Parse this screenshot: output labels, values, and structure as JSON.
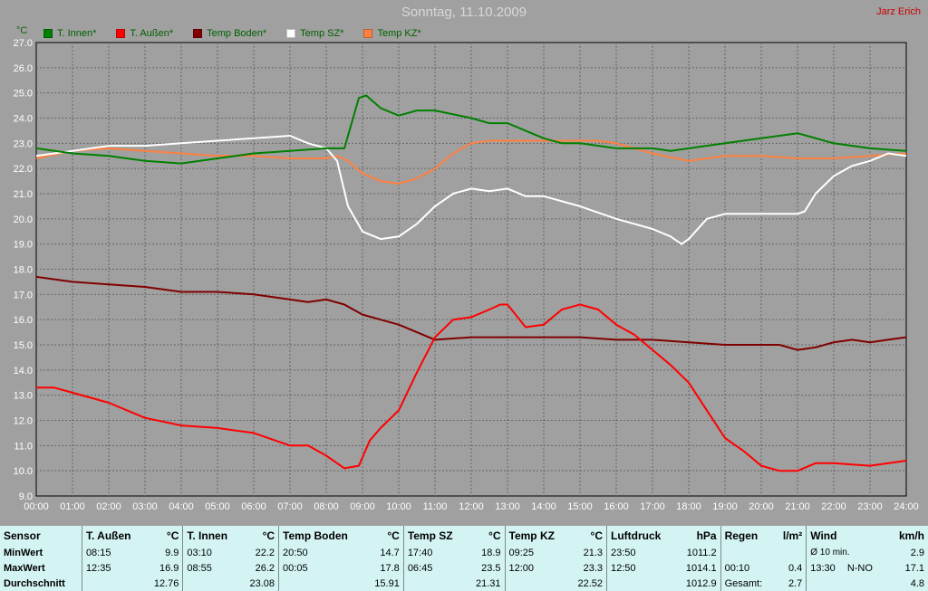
{
  "title": "Sonntag, 11.10.2009",
  "author": "Jarz Erich",
  "unit_label": "°C",
  "chart_data": {
    "type": "line",
    "title": "Sonntag, 11.10.2009",
    "ylabel": "°C",
    "ylim": [
      9.0,
      27.0
    ],
    "yticks": [
      "9.0",
      "10.0",
      "11.0",
      "12.0",
      "13.0",
      "14.0",
      "15.0",
      "16.0",
      "17.0",
      "18.0",
      "19.0",
      "20.0",
      "21.0",
      "22.0",
      "23.0",
      "24.0",
      "25.0",
      "26.0",
      "27.0"
    ],
    "xlim": [
      0,
      24
    ],
    "xticks": [
      "00:00",
      "01:00",
      "02:00",
      "03:00",
      "04:00",
      "05:00",
      "06:00",
      "07:00",
      "08:00",
      "09:00",
      "10:00",
      "11:00",
      "12:00",
      "13:00",
      "14:00",
      "15:00",
      "16:00",
      "17:00",
      "18:00",
      "19:00",
      "20:00",
      "21:00",
      "22:00",
      "23:00",
      "24:00"
    ],
    "grid": true,
    "legend_position": "top-left",
    "series": [
      {
        "name": "T. Innen*",
        "color": "#008000",
        "x": [
          0,
          1,
          2,
          3,
          4,
          5,
          6,
          7,
          8,
          8.5,
          8.9,
          9.1,
          9.5,
          10,
          10.5,
          11,
          12,
          12.5,
          13,
          13.5,
          14,
          14.5,
          15,
          16,
          17,
          17.5,
          18,
          19,
          20,
          20.5,
          21,
          22,
          23,
          24
        ],
        "y": [
          22.8,
          22.6,
          22.5,
          22.3,
          22.2,
          22.4,
          22.6,
          22.7,
          22.8,
          22.8,
          24.8,
          24.9,
          24.4,
          24.1,
          24.3,
          24.3,
          24.0,
          23.8,
          23.8,
          23.5,
          23.2,
          23.0,
          23.0,
          22.8,
          22.8,
          22.7,
          22.8,
          23.0,
          23.2,
          23.3,
          23.4,
          23.0,
          22.8,
          22.7
        ]
      },
      {
        "name": "T. Außen*",
        "color": "#ff0000",
        "x": [
          0,
          0.5,
          1,
          2,
          3,
          4,
          5,
          6,
          7,
          7.5,
          8,
          8.5,
          8.9,
          9.2,
          9.5,
          10,
          10.5,
          11,
          11.5,
          12,
          12.5,
          12.8,
          13,
          13.5,
          14,
          14.5,
          15,
          15.5,
          16,
          16.5,
          17,
          17.5,
          18,
          18.5,
          19,
          19.5,
          20,
          20.5,
          21,
          21.5,
          22,
          23,
          24
        ],
        "y": [
          13.3,
          13.3,
          13.1,
          12.7,
          12.1,
          11.8,
          11.7,
          11.5,
          11.0,
          11.0,
          10.6,
          10.1,
          10.2,
          11.2,
          11.7,
          12.4,
          13.9,
          15.3,
          16.0,
          16.1,
          16.4,
          16.6,
          16.6,
          15.7,
          15.8,
          16.4,
          16.6,
          16.4,
          15.8,
          15.4,
          14.8,
          14.2,
          13.5,
          12.4,
          11.3,
          10.8,
          10.2,
          10.0,
          10.0,
          10.3,
          10.3,
          10.2,
          10.4
        ]
      },
      {
        "name": "Temp Boden*",
        "color": "#800000",
        "x": [
          0,
          1,
          2,
          3,
          4,
          5,
          6,
          7,
          7.5,
          8,
          8.5,
          9,
          9.5,
          10,
          10.5,
          11,
          12,
          13,
          14,
          15,
          16,
          17,
          18,
          19,
          20,
          20.5,
          21,
          21.5,
          22,
          22.5,
          23,
          23.5,
          24
        ],
        "y": [
          17.7,
          17.5,
          17.4,
          17.3,
          17.1,
          17.1,
          17.0,
          16.8,
          16.7,
          16.8,
          16.6,
          16.2,
          16.0,
          15.8,
          15.5,
          15.2,
          15.3,
          15.3,
          15.3,
          15.3,
          15.2,
          15.2,
          15.1,
          15.0,
          15.0,
          15.0,
          14.8,
          14.9,
          15.1,
          15.2,
          15.1,
          15.2,
          15.3
        ]
      },
      {
        "name": "Temp SZ*",
        "color": "#ffffff",
        "x": [
          0,
          1,
          2,
          3,
          4,
          5,
          6,
          7,
          7.5,
          8,
          8.3,
          8.6,
          9,
          9.5,
          10,
          10.5,
          11,
          11.5,
          12,
          12.5,
          13,
          13.5,
          14,
          15,
          16,
          17,
          17.5,
          17.8,
          18,
          18.5,
          19,
          20,
          21,
          21.2,
          21.5,
          22,
          22.5,
          23,
          23.5,
          24
        ],
        "y": [
          22.5,
          22.7,
          22.9,
          22.9,
          23.0,
          23.1,
          23.2,
          23.3,
          23.0,
          22.8,
          22.3,
          20.5,
          19.5,
          19.2,
          19.3,
          19.8,
          20.5,
          21.0,
          21.2,
          21.1,
          21.2,
          20.9,
          20.9,
          20.5,
          20.0,
          19.6,
          19.3,
          19.0,
          19.2,
          20.0,
          20.2,
          20.2,
          20.2,
          20.3,
          21.0,
          21.7,
          22.1,
          22.3,
          22.6,
          22.5
        ]
      },
      {
        "name": "Temp KZ*",
        "color": "#ff8040",
        "x": [
          0,
          1,
          2,
          3,
          4,
          5,
          6,
          7,
          8,
          8.3,
          8.6,
          9,
          9.5,
          10,
          10.5,
          11,
          11.5,
          12,
          12.5,
          13,
          14,
          15,
          15.5,
          16,
          16.5,
          17,
          18,
          19,
          20,
          21,
          22,
          23,
          24
        ],
        "y": [
          22.4,
          22.7,
          22.8,
          22.7,
          22.6,
          22.5,
          22.5,
          22.4,
          22.4,
          22.5,
          22.3,
          21.8,
          21.5,
          21.4,
          21.6,
          22.0,
          22.6,
          23.0,
          23.1,
          23.1,
          23.1,
          23.1,
          23.1,
          23.0,
          22.8,
          22.6,
          22.3,
          22.5,
          22.5,
          22.4,
          22.4,
          22.5,
          22.6
        ]
      }
    ]
  },
  "stats": {
    "row_labels": {
      "sensor": "Sensor",
      "min": "MinWert",
      "max": "MaxWert",
      "avg": "Durchschnitt"
    },
    "groups": [
      {
        "name": "T. Außen",
        "unit": "°C",
        "min_time": "08:15",
        "min_val": "9.9",
        "max_time": "12:35",
        "max_val": "16.9",
        "avg": "12.76"
      },
      {
        "name": "T. Innen",
        "unit": "°C",
        "min_time": "03:10",
        "min_val": "22.2",
        "max_time": "08:55",
        "max_val": "26.2",
        "avg": "23.08"
      },
      {
        "name": "Temp Boden",
        "unit": "°C",
        "min_time": "20:50",
        "min_val": "14.7",
        "max_time": "00:05",
        "max_val": "17.8",
        "avg": "15.91"
      },
      {
        "name": "Temp SZ",
        "unit": "°C",
        "min_time": "17:40",
        "min_val": "18.9",
        "max_time": "06:45",
        "max_val": "23.5",
        "avg": "21.31"
      },
      {
        "name": "Temp KZ",
        "unit": "°C",
        "min_time": "09:25",
        "min_val": "21.3",
        "max_time": "12:00",
        "max_val": "23.3",
        "avg": "22.52"
      },
      {
        "name": "Luftdruck",
        "unit": "hPa",
        "min_time": "23:50",
        "min_val": "1011.2",
        "max_time": "12:50",
        "max_val": "1014.1",
        "avg": "1012.9"
      },
      {
        "name": "Regen",
        "unit": "l/m²",
        "min_time": "",
        "min_val": "",
        "max_time": "00:10",
        "max_val": "0.4",
        "avg_label": "Gesamt:",
        "avg": "2.7"
      },
      {
        "name": "Wind",
        "unit": "km/h",
        "min_time": "Ø 10 min.",
        "min_val": "2.9",
        "max_time": "13:30",
        "max_extra": "N-NO",
        "max_val": "17.1",
        "avg": "4.8"
      }
    ]
  }
}
